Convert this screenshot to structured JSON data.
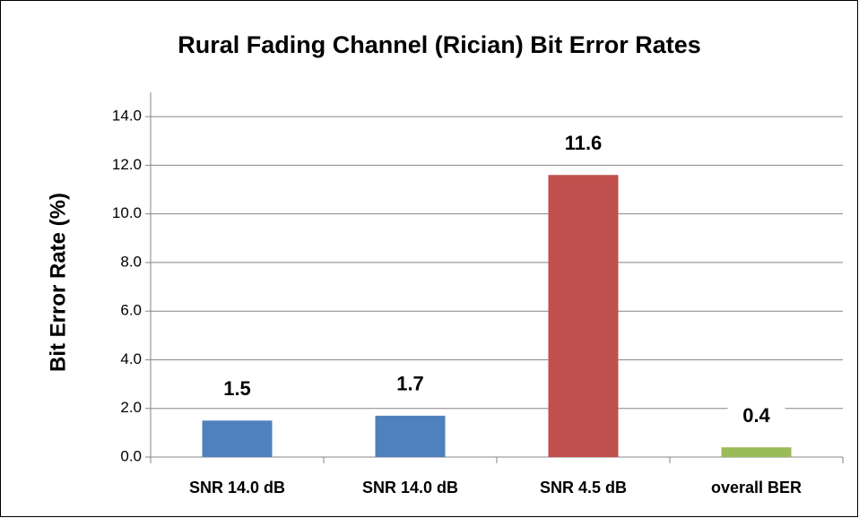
{
  "chart_data": {
    "type": "bar",
    "title": "Rural Fading Channel (Rician) Bit Error Rates",
    "y_label": "Bit Error Rate (%)",
    "categories": [
      "SNR 14.0 dB",
      "SNR 14.0 dB",
      "SNR 4.5 dB",
      "overall BER"
    ],
    "values": [
      1.5,
      1.7,
      11.6,
      0.4
    ],
    "colors": [
      "#4f81bd",
      "#4f81bd",
      "#c0504d",
      "#9bbb59"
    ],
    "ylim": [
      0,
      15
    ],
    "yticks": [
      {
        "value": 0,
        "label": "0.0"
      },
      {
        "value": 2,
        "label": "2.0"
      },
      {
        "value": 4,
        "label": "4.0"
      },
      {
        "value": 6,
        "label": "6.0"
      },
      {
        "value": 8,
        "label": "8.0"
      },
      {
        "value": 10,
        "label": "10.0"
      },
      {
        "value": 12,
        "label": "12.0"
      },
      {
        "value": 14,
        "label": "14.0"
      }
    ],
    "grid": true
  }
}
